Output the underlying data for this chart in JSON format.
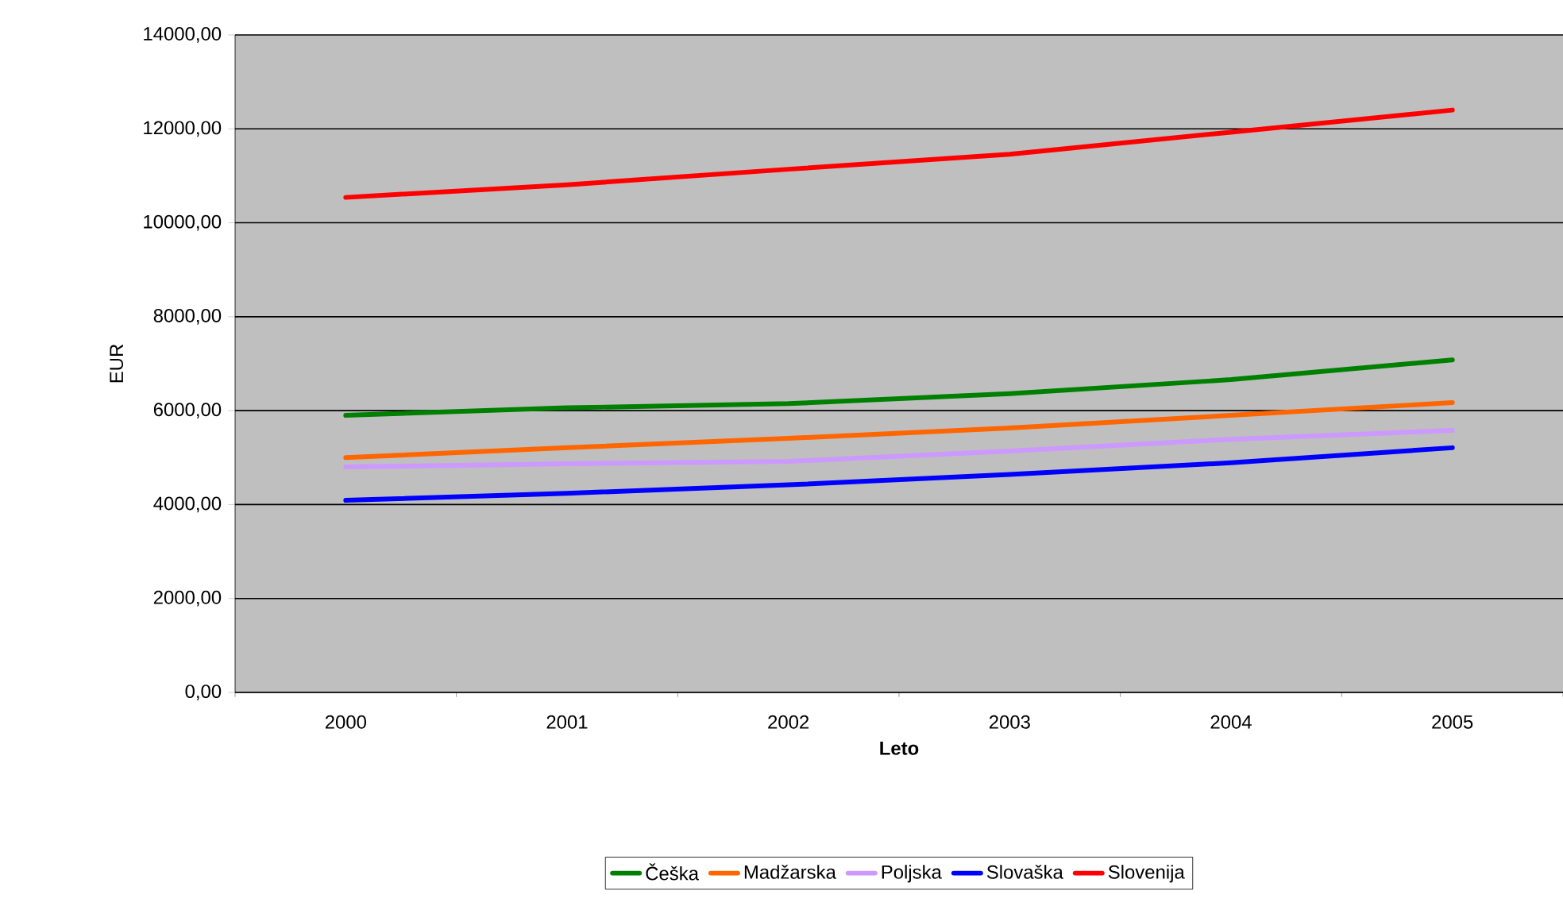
{
  "chart_data": {
    "type": "line",
    "xlabel": "Leto",
    "ylabel": "EUR",
    "categories": [
      "2000",
      "2001",
      "2002",
      "2003",
      "2004",
      "2005"
    ],
    "series": [
      {
        "name": "Češka",
        "color": "#008000",
        "values": [
          5900,
          6060,
          6150,
          6360,
          6660,
          7080
        ]
      },
      {
        "name": "Madžarska",
        "color": "#ff6600",
        "values": [
          5000,
          5210,
          5410,
          5630,
          5900,
          6170
        ]
      },
      {
        "name": "Poljska",
        "color": "#cc99ff",
        "values": [
          4800,
          4870,
          4920,
          5140,
          5390,
          5580
        ]
      },
      {
        "name": "Slovaška",
        "color": "#0000ff",
        "values": [
          4090,
          4240,
          4420,
          4640,
          4890,
          5210
        ]
      },
      {
        "name": "Slovenija",
        "color": "#ff0000",
        "values": [
          10540,
          10810,
          11140,
          11460,
          11930,
          12400
        ]
      }
    ],
    "ylim": [
      0,
      14000
    ],
    "yticks": [
      {
        "value": 0,
        "label": "0,00"
      },
      {
        "value": 2000,
        "label": "2000,00"
      },
      {
        "value": 4000,
        "label": "4000,00"
      },
      {
        "value": 6000,
        "label": "6000,00"
      },
      {
        "value": 8000,
        "label": "8000,00"
      },
      {
        "value": 10000,
        "label": "10000,00"
      },
      {
        "value": 12000,
        "label": "12000,00"
      },
      {
        "value": 14000,
        "label": "14000,00"
      }
    ],
    "grid": "y",
    "legend": "bottom",
    "marker": "none",
    "line_style": "solid"
  }
}
